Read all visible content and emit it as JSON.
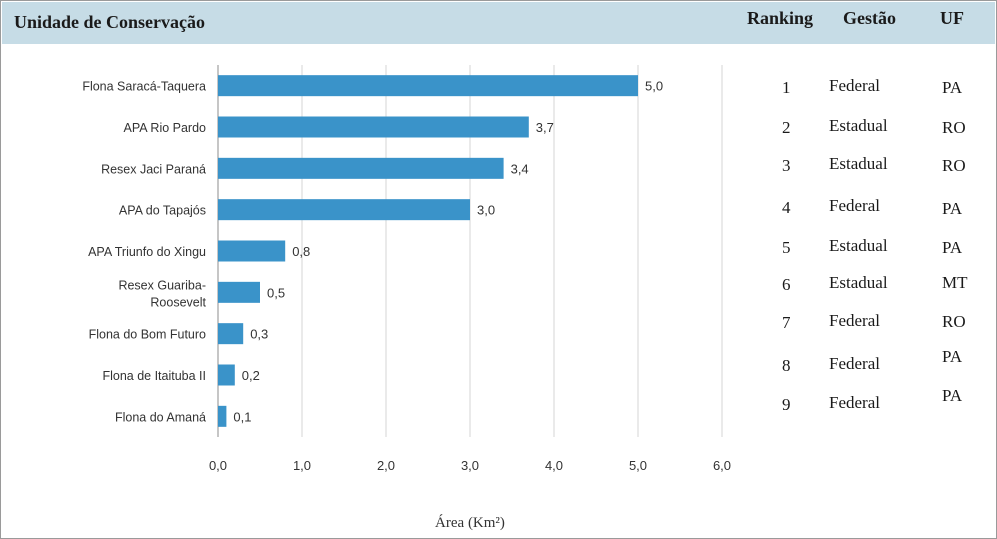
{
  "header": {
    "title": "Unidade de Conservação",
    "ranking": "Ranking",
    "gestao": "Gestão",
    "uf": "UF"
  },
  "chart_data": {
    "type": "bar",
    "orientation": "horizontal",
    "categories": [
      "Flona Saracá-Taquera",
      "APA Rio Pardo",
      "Resex Jaci Paraná",
      "APA do Tapajós",
      "APA Triunfo do Xingu",
      "Resex Guariba-\nRoosevelt",
      "Flona do Bom Futuro",
      "Flona de Itaituba II",
      "Flona do Amaná"
    ],
    "values": [
      5.0,
      3.7,
      3.4,
      3.0,
      0.8,
      0.5,
      0.3,
      0.2,
      0.1
    ],
    "data_labels": [
      "5,0",
      "3,7",
      "3,4",
      "3,0",
      "0,8",
      "0,5",
      "0,3",
      "0,2",
      "0,1"
    ],
    "xlim": [
      0,
      6
    ],
    "xticks": [
      "0,0",
      "1,0",
      "2,0",
      "3,0",
      "4,0",
      "5,0",
      "6,0"
    ],
    "xlabel": "Área (Km²)",
    "grid": "vertical",
    "bar_color": "#3a93c9"
  },
  "table": {
    "rows": [
      {
        "ranking": "1",
        "gestao": "Federal",
        "uf": "PA"
      },
      {
        "ranking": "2",
        "gestao": "Estadual",
        "uf": "RO"
      },
      {
        "ranking": "3",
        "gestao": "Estadual",
        "uf": "RO"
      },
      {
        "ranking": "4",
        "gestao": "Federal",
        "uf": "PA"
      },
      {
        "ranking": "5",
        "gestao": "Estadual",
        "uf": "PA"
      },
      {
        "ranking": "6",
        "gestao": "Estadual",
        "uf": "MT"
      },
      {
        "ranking": "7",
        "gestao": "Federal",
        "uf": "RO"
      },
      {
        "ranking": "8",
        "gestao": "Federal",
        "uf": "PA"
      },
      {
        "ranking": "9",
        "gestao": "Federal",
        "uf": "PA"
      }
    ]
  }
}
